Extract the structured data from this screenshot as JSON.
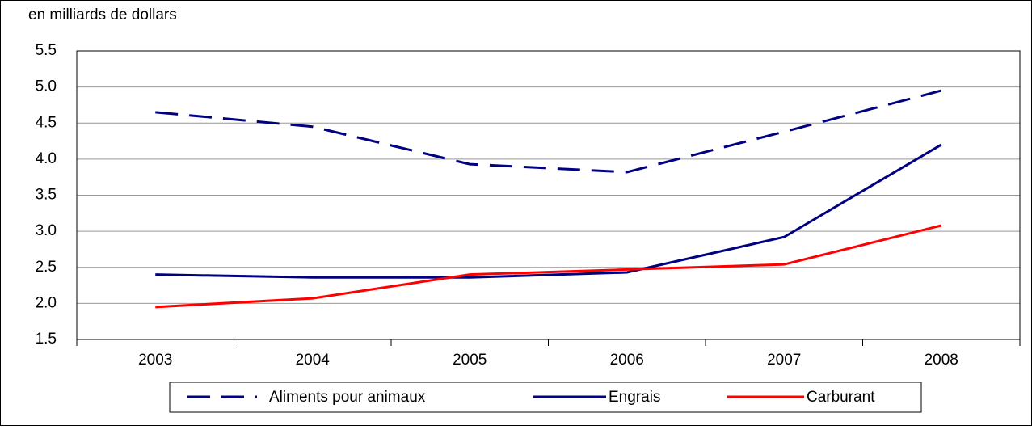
{
  "chart_data": {
    "type": "line",
    "y_label": "en milliards de dollars",
    "categories": [
      "2003",
      "2004",
      "2005",
      "2006",
      "2007",
      "2008"
    ],
    "series": [
      {
        "name": "Aliments pour animaux",
        "color": "#000080",
        "style": "dashed",
        "values": [
          4.65,
          4.45,
          3.93,
          3.82,
          4.38,
          4.95
        ]
      },
      {
        "name": "Engrais",
        "color": "#000080",
        "style": "solid",
        "values": [
          2.4,
          2.36,
          2.36,
          2.43,
          2.92,
          4.2
        ]
      },
      {
        "name": "Carburant",
        "color": "#ff0000",
        "style": "solid",
        "values": [
          1.95,
          2.07,
          2.4,
          2.47,
          2.54,
          3.08
        ]
      }
    ],
    "ylim": [
      1.5,
      5.5
    ],
    "yticks": [
      1.5,
      {
        "value": 2,
        "label": "2.0"
      },
      2.5,
      {
        "value": 3,
        "label": "3.0"
      },
      3.5,
      {
        "value": 4,
        "label": "4.0"
      },
      4.5,
      {
        "value": 5,
        "label": "5.0"
      },
      5.5
    ],
    "grid": true,
    "legend": "bottom"
  }
}
